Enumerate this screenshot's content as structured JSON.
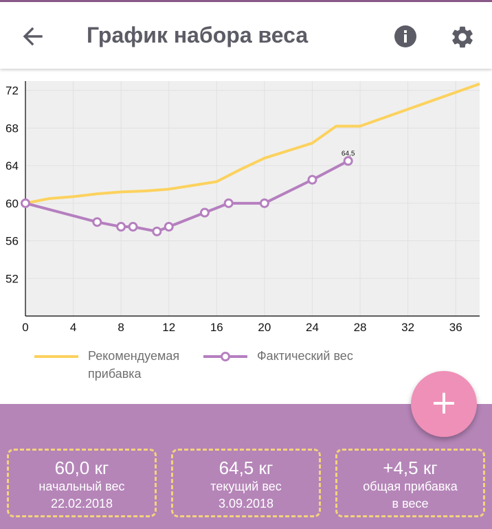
{
  "app": {
    "title": "График набора веса"
  },
  "colors": {
    "accent": "#b585b8",
    "fab": "#ef90b8",
    "recommended_line": "#fcd25e",
    "actual_line": "#b57fbf",
    "card_border": "#f4d37a"
  },
  "icons": {
    "back": "arrow-left-icon",
    "info": "info-icon",
    "settings": "gear-icon",
    "add": "plus-icon"
  },
  "chart_data": {
    "type": "line",
    "xlim": [
      0,
      38
    ],
    "ylim": [
      48,
      73
    ],
    "x_ticks": [
      0,
      4,
      8,
      12,
      16,
      20,
      24,
      28,
      32,
      36
    ],
    "y_ticks": [
      52,
      56,
      60,
      64,
      68,
      72
    ],
    "grid": true,
    "legend_position": "bottom-left",
    "series": [
      {
        "name": "Рекомендуемая прибавка",
        "markers": false,
        "points": [
          [
            0,
            60.0
          ],
          [
            2,
            60.5
          ],
          [
            4,
            60.7
          ],
          [
            6,
            61.0
          ],
          [
            8,
            61.2
          ],
          [
            10,
            61.3
          ],
          [
            12,
            61.5
          ],
          [
            14,
            61.9
          ],
          [
            16,
            62.3
          ],
          [
            18,
            63.6
          ],
          [
            20,
            64.8
          ],
          [
            22,
            65.6
          ],
          [
            24,
            66.4
          ],
          [
            26,
            68.2
          ],
          [
            28,
            68.2
          ],
          [
            32,
            70.0
          ],
          [
            36,
            71.8
          ],
          [
            38,
            72.7
          ]
        ]
      },
      {
        "name": "Фактический вес",
        "markers": true,
        "points": [
          [
            0,
            60.0
          ],
          [
            6,
            58.0
          ],
          [
            8,
            57.5
          ],
          [
            9,
            57.5
          ],
          [
            11,
            57.0
          ],
          [
            12,
            57.5
          ],
          [
            15,
            59.0
          ],
          [
            17,
            60.0
          ],
          [
            20,
            60.0
          ],
          [
            24,
            62.5
          ],
          [
            27,
            64.5
          ]
        ]
      }
    ],
    "annotations": [
      {
        "text": "64,5",
        "x": 27,
        "y": 64.5
      }
    ]
  },
  "legend": {
    "recommended_line1": "Рекомендуемая",
    "recommended_line2": "прибавка",
    "actual": "Фактический вес"
  },
  "stats": [
    {
      "value": "60,0 кг",
      "line1": "начальный вес",
      "line2": "22.02.2018"
    },
    {
      "value": "64,5 кг",
      "line1": "текущий вес",
      "line2": "3.09.2018"
    },
    {
      "value": "+4,5 кг",
      "line1": "общая прибавка",
      "line2": "в весе"
    }
  ],
  "fab": {
    "label": "+"
  }
}
